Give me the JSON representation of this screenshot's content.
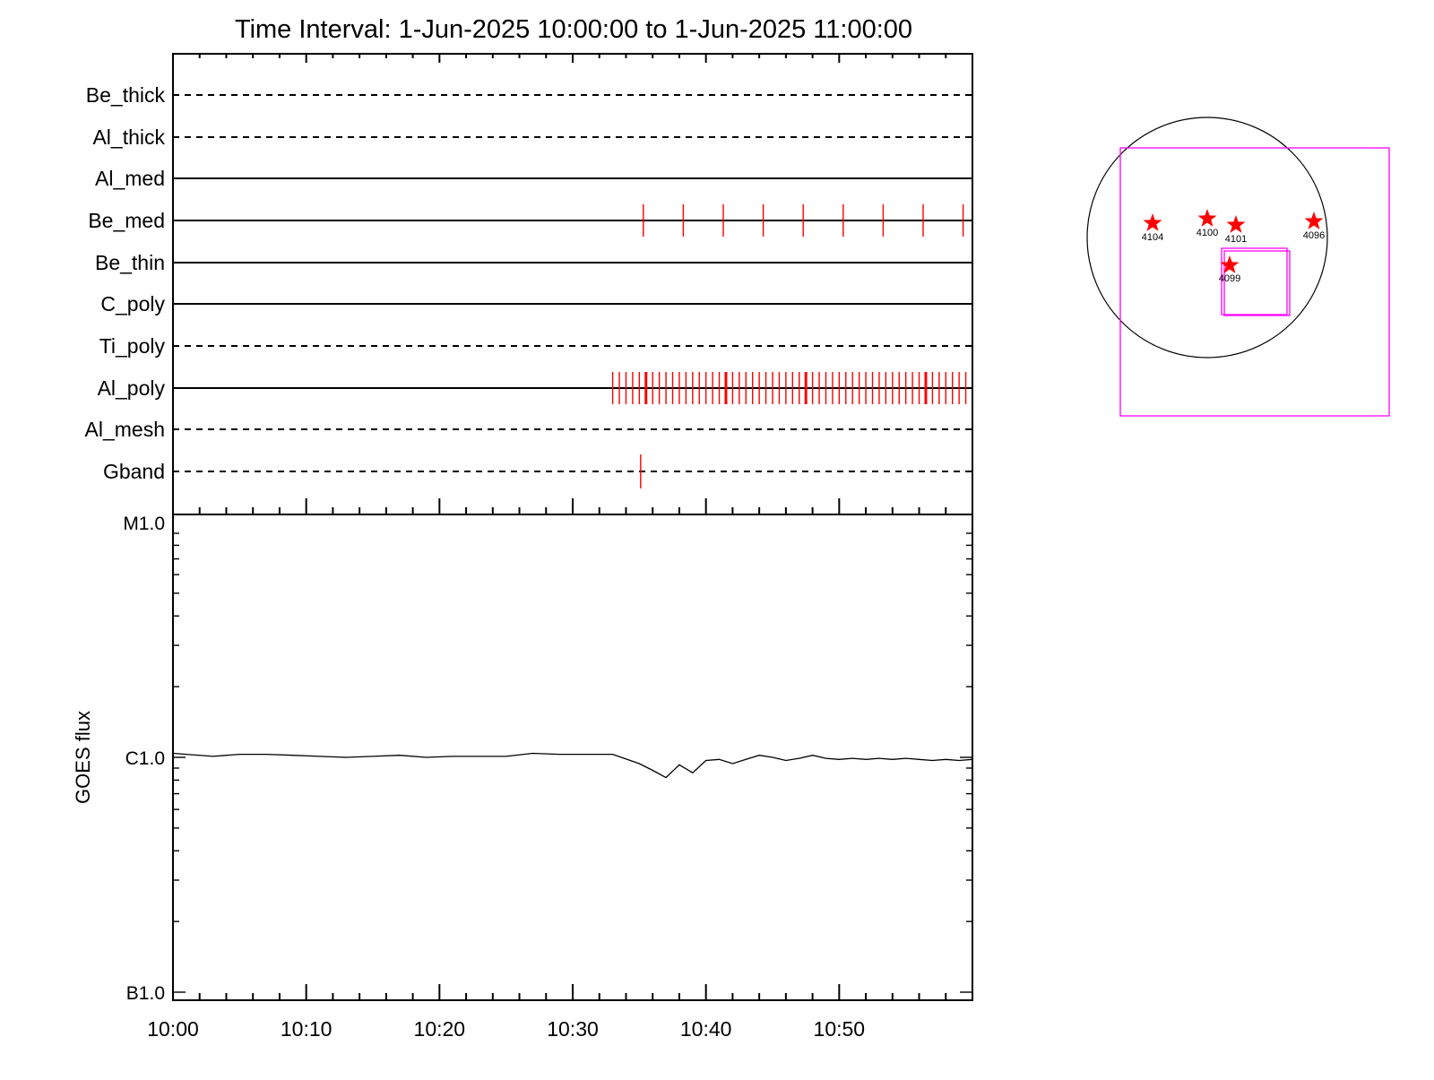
{
  "title": "Time Interval:  1-Jun-2025 10:00:00 to  1-Jun-2025 11:00:00",
  "colors": {
    "mark": "#ff0000",
    "frame": "#000000",
    "box": "#ff00ff"
  },
  "chart_data": [
    {
      "type": "event-timeline",
      "x_range": [
        "10:00",
        "11:00"
      ],
      "x_ticks": [
        "10:00",
        "10:10",
        "10:20",
        "10:30",
        "10:40",
        "10:50"
      ],
      "rows": [
        {
          "label": "Be_thick",
          "style": "dashed",
          "events": []
        },
        {
          "label": "Al_thick",
          "style": "dashed",
          "events": []
        },
        {
          "label": "Al_med",
          "style": "solid",
          "events": []
        },
        {
          "label": "Be_med",
          "style": "solid",
          "events": [
            35.3,
            38.3,
            41.3,
            44.3,
            47.3,
            50.3,
            53.3,
            56.3,
            59.3
          ]
        },
        {
          "label": "Be_thin",
          "style": "solid",
          "events": []
        },
        {
          "label": "C_poly",
          "style": "solid",
          "events": []
        },
        {
          "label": "Ti_poly",
          "style": "dashed",
          "events": []
        },
        {
          "label": "Al_poly",
          "style": "solid",
          "events": "every 0.5 min from 33.0 to 59.5",
          "bold_events": [
            35.5,
            41.5,
            47.5,
            56.5
          ]
        },
        {
          "label": "Al_mesh",
          "style": "dashed",
          "events": []
        },
        {
          "label": "Gband",
          "style": "dashed",
          "events": [
            35.1
          ]
        }
      ]
    },
    {
      "type": "line",
      "ylabel": "GOES flux",
      "yscale": "log",
      "y_ticks": [
        {
          "label": "B1.0",
          "value": 1e-07
        },
        {
          "label": "C1.0",
          "value": 1e-06
        },
        {
          "label": "M1.0",
          "value": 1e-05
        }
      ],
      "x_ticks": [
        "10:00",
        "10:10",
        "10:20",
        "10:30",
        "10:40",
        "10:50"
      ],
      "series": [
        {
          "x_minutes": [
            0,
            1,
            3,
            5,
            7,
            9,
            11,
            13,
            15,
            17,
            19,
            21,
            23,
            25,
            27,
            29,
            31,
            33,
            35,
            36,
            37,
            38,
            39,
            40,
            41,
            42,
            43,
            44,
            45,
            46,
            47,
            48,
            49,
            50,
            51,
            52,
            53,
            54,
            55,
            56,
            57,
            58,
            59,
            60
          ],
          "y_flux": [
            1.04e-06,
            1.03e-06,
            1.01e-06,
            1.03e-06,
            1.03e-06,
            1.02e-06,
            1.01e-06,
            1e-06,
            1.01e-06,
            1.02e-06,
            1e-06,
            1.01e-06,
            1.01e-06,
            1.01e-06,
            1.04e-06,
            1.03e-06,
            1.03e-06,
            1.03e-06,
            9.4e-07,
            8.8e-07,
            8.2e-07,
            9.3e-07,
            8.6e-07,
            9.7e-07,
            9.8e-07,
            9.4e-07,
            9.8e-07,
            1.02e-06,
            1e-06,
            9.7e-07,
            9.9e-07,
            1.02e-06,
            9.9e-07,
            9.8e-07,
            9.9e-07,
            9.8e-07,
            9.9e-07,
            9.8e-07,
            9.9e-07,
            9.8e-07,
            9.7e-07,
            9.8e-07,
            9.7e-07,
            9.8e-07
          ]
        }
      ]
    }
  ],
  "solar_map": {
    "regions": [
      {
        "label": "4104"
      },
      {
        "label": "4100"
      },
      {
        "label": "4101"
      },
      {
        "label": "4096"
      },
      {
        "label": "4099"
      }
    ]
  }
}
